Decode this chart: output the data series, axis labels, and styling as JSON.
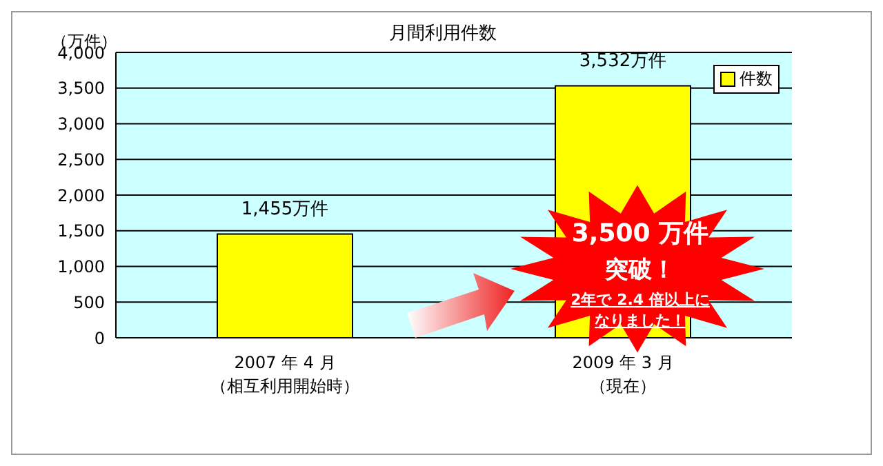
{
  "chart_data": {
    "type": "bar",
    "title": "月間利用件数",
    "ylabel": "（万件）",
    "categories": [
      "2007 年 4 月（相互利用開始時）",
      "2009 年 3 月（現在）"
    ],
    "series": [
      {
        "name": "件数",
        "color": "#ffff00",
        "values": [
          1455,
          3532
        ],
        "value_labels": [
          "1,455万件",
          "3,532万件"
        ]
      }
    ],
    "ylim": [
      0,
      4000
    ],
    "yticks": [
      0,
      500,
      {
        "value": 1000,
        "label": "1,000"
      },
      {
        "value": 1500,
        "label": "1,500"
      },
      {
        "value": 2000,
        "label": "2,000"
      },
      {
        "value": 2500,
        "label": "2,500"
      },
      {
        "value": 3000,
        "label": "3,000"
      },
      {
        "value": 3500,
        "label": "3,500"
      },
      {
        "value": 4000,
        "label": "4,000"
      }
    ],
    "grid": "y",
    "legend": "top right",
    "annotations": [
      "3,500 万件",
      "突破！",
      "2年で 2.4 倍以上に",
      "なりました！"
    ]
  }
}
